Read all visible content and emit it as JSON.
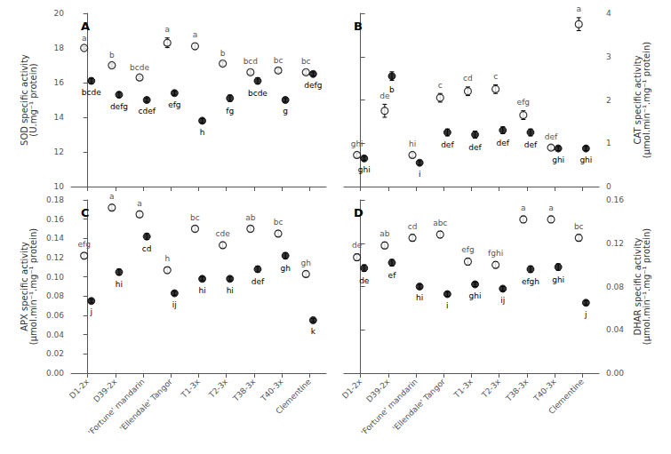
{
  "chart_data": [
    {
      "type": "scatter",
      "title": "A",
      "ylabel": "SOD specific activity\n(U.mg⁻¹ protein)",
      "categories": [
        "D1-2x",
        "D39-2x",
        "'Fortune' mandarin",
        "'Ellendale' Tangor",
        "T1-3x",
        "T2-3x",
        "T38-3x",
        "T40-3x",
        "Clementine"
      ],
      "ylim": [
        10,
        20
      ],
      "yticks": [
        10,
        12,
        14,
        16,
        18,
        20
      ],
      "grid": false,
      "tick_labels": "y",
      "series": [
        {
          "marker": "circle-open",
          "color": "#000000",
          "values": [
            18.0,
            17.0,
            16.3,
            18.3,
            18.1,
            17.1,
            16.6,
            16.7,
            16.6
          ],
          "errors": [
            0.08,
            0.08,
            0.08,
            0.28,
            0.18,
            0.12,
            0.12,
            0.12,
            0.12
          ],
          "labels": [
            "a",
            "b",
            "bcde",
            "a",
            "a",
            "b",
            "bcd",
            "bc",
            "bc"
          ]
        },
        {
          "marker": "circle",
          "color": "#000000",
          "values": [
            16.1,
            15.3,
            15.0,
            15.4,
            13.8,
            15.1,
            16.1,
            15.0,
            16.5
          ],
          "errors": [
            0.15,
            0.15,
            0.12,
            0.12,
            0.12,
            0.18,
            0.18,
            0.12,
            0.12
          ],
          "labels": [
            "bcde",
            "defg",
            "cdef",
            "efg",
            "h",
            "fg",
            "bcde",
            "g",
            "defg"
          ]
        }
      ]
    },
    {
      "type": "scatter",
      "title": "B",
      "ylabel": "CAT specific activity\n(µmol.min⁻¹.mg⁻¹ protein)",
      "categories": [
        "D1-2x",
        "D39-2x",
        "'Fortune' mandarin",
        "'Ellendale' Tangor",
        "T1-3x",
        "T2-3x",
        "T38-3x",
        "T40-3x",
        "Clementine"
      ],
      "ylim": [
        0,
        4
      ],
      "yticks": [
        0,
        1,
        2,
        3,
        4
      ],
      "grid": false,
      "tick_labels": "y",
      "series": [
        {
          "marker": "circle-open",
          "color": "#000000",
          "values": [
            0.73,
            1.75,
            0.73,
            2.05,
            2.2,
            2.25,
            1.65,
            0.9,
            3.75
          ],
          "errors": [
            0.05,
            0.15,
            0.05,
            0.1,
            0.1,
            0.1,
            0.1,
            0.05,
            0.15
          ],
          "labels": [
            "ghi",
            "de",
            "hi",
            "c",
            "cd",
            "c",
            "efg",
            "def",
            "a"
          ]
        },
        {
          "marker": "circle",
          "color": "#000000",
          "values": [
            0.65,
            2.55,
            0.55,
            1.25,
            1.2,
            1.3,
            1.25,
            0.88,
            0.88
          ],
          "errors": [
            0.05,
            0.1,
            0.05,
            0.08,
            0.08,
            0.08,
            0.08,
            0.05,
            0.05
          ],
          "labels": [
            "ghi",
            "b",
            "i",
            "def",
            "def",
            "def",
            "def",
            "ghi",
            "ghi"
          ]
        }
      ]
    },
    {
      "type": "scatter",
      "title": "C",
      "ylabel": "APX specific activity\n(µmol.min⁻¹.mg⁻¹ protein)",
      "categories": [
        "D1-2x",
        "D39-2x",
        "'Fortune' mandarin",
        "'Ellendale' Tangor",
        "T1-3x",
        "T2-3x",
        "T38-3x",
        "T40-3x",
        "Clementine"
      ],
      "ylim": [
        0,
        0.18
      ],
      "yticks": [
        {
          "value": 0,
          "label": "0.00"
        },
        0.02,
        0.04,
        0.06,
        0.08,
        {
          "value": 0.1,
          "label": "0.10"
        },
        0.12,
        0.14,
        0.16,
        0.18
      ],
      "grid": false,
      "series": [
        {
          "marker": "circle-open",
          "color": "#000000",
          "values": [
            0.122,
            0.172,
            0.165,
            0.107,
            0.15,
            0.133,
            0.15,
            0.145,
            0.103
          ],
          "errors": [
            0.003,
            0.003,
            0.003,
            0.003,
            0.003,
            0.003,
            0.003,
            0.003,
            0.003
          ],
          "labels": [
            "efg",
            "a",
            "a",
            "h",
            "bc",
            "cde",
            "ab",
            "bc",
            "gh"
          ]
        },
        {
          "marker": "circle",
          "color": "#000000",
          "values": [
            0.075,
            0.105,
            0.142,
            0.083,
            0.098,
            0.098,
            0.108,
            0.122,
            0.055
          ],
          "errors": [
            0.002,
            0.003,
            0.003,
            0.002,
            0.002,
            0.002,
            0.003,
            0.003,
            0.002
          ],
          "labels": [
            "j",
            "hi",
            "cd",
            "ij",
            "hi",
            "hi",
            "def",
            "gh",
            "k"
          ]
        }
      ]
    },
    {
      "type": "scatter",
      "title": "D",
      "ylabel": "DHAR specific activity\n(µmol.min⁻¹.mg⁻¹ protein)",
      "categories": [
        "D1-2x",
        "D39-2x",
        "'Fortune' mandarin",
        "'Ellendale' Tangor",
        "T1-3x",
        "T2-3x",
        "T38-3x",
        "T40-3x",
        "Clementine"
      ],
      "ylim": [
        0,
        0.16
      ],
      "yticks": [
        {
          "value": 0,
          "label": "0.00"
        },
        0.04,
        0.08,
        0.12,
        0.16
      ],
      "grid": false,
      "series": [
        {
          "marker": "circle-open",
          "color": "#000000",
          "values": [
            0.107,
            0.118,
            0.125,
            0.128,
            0.103,
            0.1,
            0.142,
            0.142,
            0.125
          ],
          "errors": [
            0.003,
            0.003,
            0.003,
            0.003,
            0.003,
            0.003,
            0.003,
            0.003,
            0.003
          ],
          "labels": [
            "de",
            "ab",
            "cd",
            "abc",
            "efg",
            "fghi",
            "a",
            "a",
            "bc"
          ]
        },
        {
          "marker": "circle",
          "color": "#000000",
          "values": [
            0.097,
            0.102,
            0.08,
            0.073,
            0.082,
            0.078,
            0.096,
            0.098,
            0.065
          ],
          "errors": [
            0.003,
            0.003,
            0.002,
            0.002,
            0.002,
            0.002,
            0.003,
            0.003,
            0.002
          ],
          "labels": [
            "de",
            "ef",
            "hi",
            "i",
            "ghi",
            "ij",
            "efgh",
            "ghi",
            "j"
          ]
        }
      ]
    }
  ]
}
